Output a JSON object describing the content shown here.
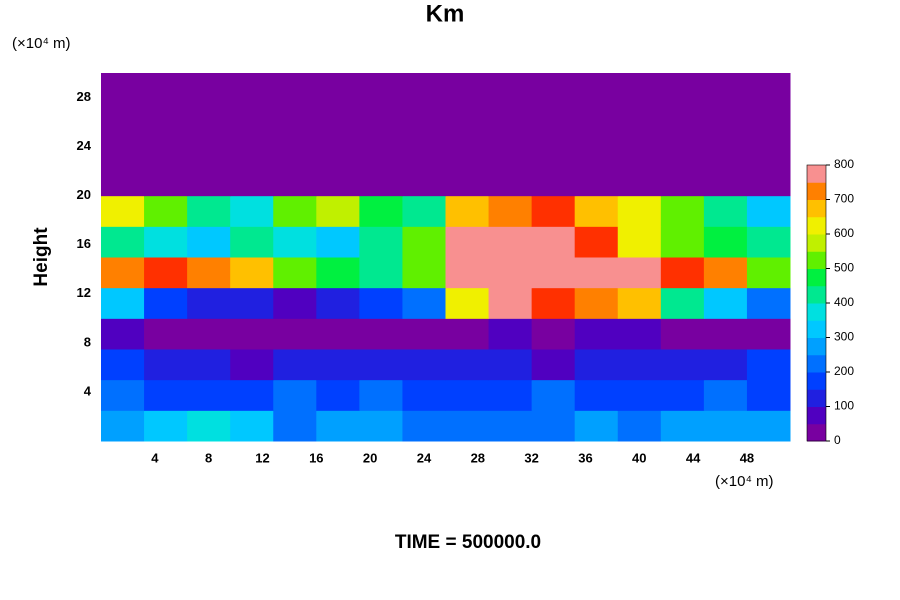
{
  "chart_data": {
    "type": "heatmap",
    "title": "Km",
    "ylabel": "Height",
    "y_unit": "(×10⁴ m)",
    "x_unit": "(×10⁴ m)",
    "footer": "TIME = 500000.0",
    "xlim": [
      0,
      51.2
    ],
    "ylim": [
      0,
      30
    ],
    "xticks": [
      4,
      8,
      12,
      16,
      20,
      24,
      28,
      32,
      36,
      40,
      44,
      48
    ],
    "yticks": [
      4,
      8,
      12,
      16,
      20,
      24,
      28
    ],
    "zlim": [
      0,
      800
    ],
    "zticks": [
      0,
      100,
      200,
      300,
      400,
      500,
      600,
      700,
      800
    ],
    "colors": [
      "#7800a0",
      "#5000c0",
      "#2020e0",
      "#0040ff",
      "#0070ff",
      "#00a0ff",
      "#00c8ff",
      "#00e0e0",
      "#00e890",
      "#00f040",
      "#60f000",
      "#c0f000",
      "#f0f000",
      "#ffc000",
      "#ff8000",
      "#ff3000",
      "#f89090"
    ],
    "z": [
      [
        250,
        300,
        350,
        330,
        220,
        260,
        250,
        230,
        200,
        220,
        240,
        260,
        230,
        260,
        280,
        250
      ],
      [
        200,
        180,
        150,
        170,
        200,
        190,
        220,
        180,
        160,
        190,
        210,
        170,
        150,
        180,
        200,
        190
      ],
      [
        180,
        120,
        100,
        90,
        110,
        100,
        120,
        130,
        100,
        110,
        90,
        120,
        110,
        120,
        130,
        150
      ],
      [
        60,
        30,
        20,
        10,
        20,
        30,
        20,
        10,
        30,
        50,
        40,
        60,
        50,
        30,
        20,
        10
      ],
      [
        300,
        150,
        100,
        120,
        80,
        100,
        150,
        200,
        600,
        800,
        750,
        700,
        650,
        400,
        300,
        200
      ],
      [
        700,
        750,
        700,
        650,
        500,
        450,
        400,
        500,
        800,
        800,
        800,
        800,
        800,
        750,
        700,
        500
      ],
      [
        400,
        350,
        300,
        400,
        350,
        300,
        400,
        500,
        800,
        800,
        800,
        750,
        600,
        500,
        450,
        400
      ],
      [
        600,
        500,
        400,
        350,
        500,
        550,
        450,
        400,
        650,
        700,
        750,
        650,
        600,
        500,
        400,
        300
      ],
      [
        0,
        0,
        0,
        0,
        0,
        0,
        0,
        0,
        0,
        0,
        0,
        0,
        0,
        0,
        0,
        0
      ],
      [
        0,
        0,
        0,
        0,
        0,
        0,
        0,
        0,
        0,
        0,
        0,
        0,
        0,
        0,
        0,
        0
      ],
      [
        0,
        0,
        0,
        0,
        0,
        0,
        0,
        0,
        0,
        0,
        0,
        0,
        0,
        0,
        0,
        0
      ],
      [
        0,
        0,
        0,
        0,
        0,
        0,
        0,
        0,
        0,
        0,
        0,
        0,
        0,
        0,
        0,
        0
      ]
    ]
  }
}
